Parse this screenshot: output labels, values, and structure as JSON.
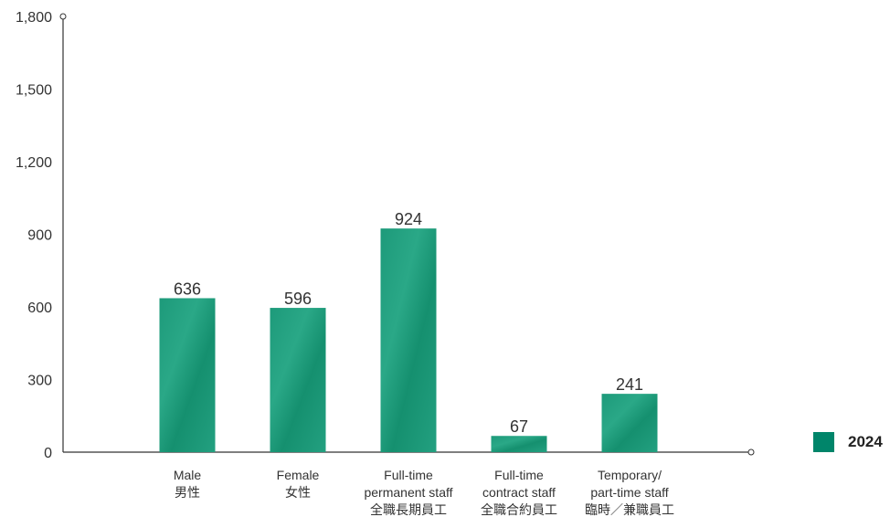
{
  "chart_data": {
    "type": "bar",
    "categories": [
      [
        "Male",
        "男性"
      ],
      [
        "Female",
        "女性"
      ],
      [
        "Full-time",
        "permanent staff",
        "全職長期員工"
      ],
      [
        "Full-time",
        "contract staff",
        "全職合約員工"
      ],
      [
        "Temporary/",
        "part-time staff",
        "臨時／兼職員工"
      ]
    ],
    "series": [
      {
        "name": "2024",
        "values": [
          636,
          596,
          924,
          67,
          241
        ]
      }
    ],
    "ylim": [
      0,
      1800
    ],
    "yticks": [
      0,
      300,
      600,
      900,
      1200,
      1500,
      1800
    ],
    "ytick_labels": [
      "0",
      "300",
      "600",
      "900",
      "1,200",
      "1,500",
      "1,800"
    ],
    "value_labels": [
      "636",
      "596",
      "924",
      "67",
      "241"
    ],
    "bar_color": "#1f9b7c",
    "legend_color": "#00856a",
    "legend_position": "bottom-right",
    "grid": false
  },
  "legend": {
    "label": "2024"
  }
}
